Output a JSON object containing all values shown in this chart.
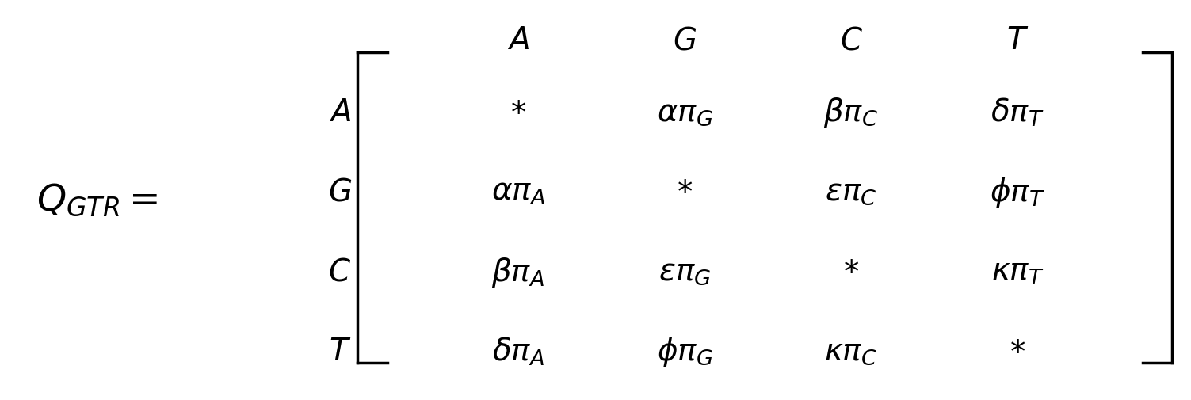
{
  "background_color": "#ffffff",
  "figsize": [
    15.03,
    5.06
  ],
  "dpi": 100,
  "lhs": "Q_{GTR} = ",
  "col_headers": [
    "A",
    "G",
    "C",
    "T"
  ],
  "row_headers": [
    "A",
    "G",
    "C",
    "T"
  ],
  "matrix": [
    [
      "*",
      "\\alpha\\pi_G",
      "\\beta\\pi_C",
      "\\delta\\pi_T"
    ],
    [
      "\\alpha\\pi_A",
      "*",
      "\\epsilon\\pi_C",
      "\\phi\\pi_T"
    ],
    [
      "\\beta\\pi_A",
      "\\epsilon\\pi_G",
      "*",
      "\\kappa\\pi_T"
    ],
    [
      "\\delta\\pi_A",
      "\\phi\\pi_G",
      "\\kappa\\pi_C",
      "*"
    ]
  ],
  "font_size": 28,
  "bracket_lw": 2.5
}
